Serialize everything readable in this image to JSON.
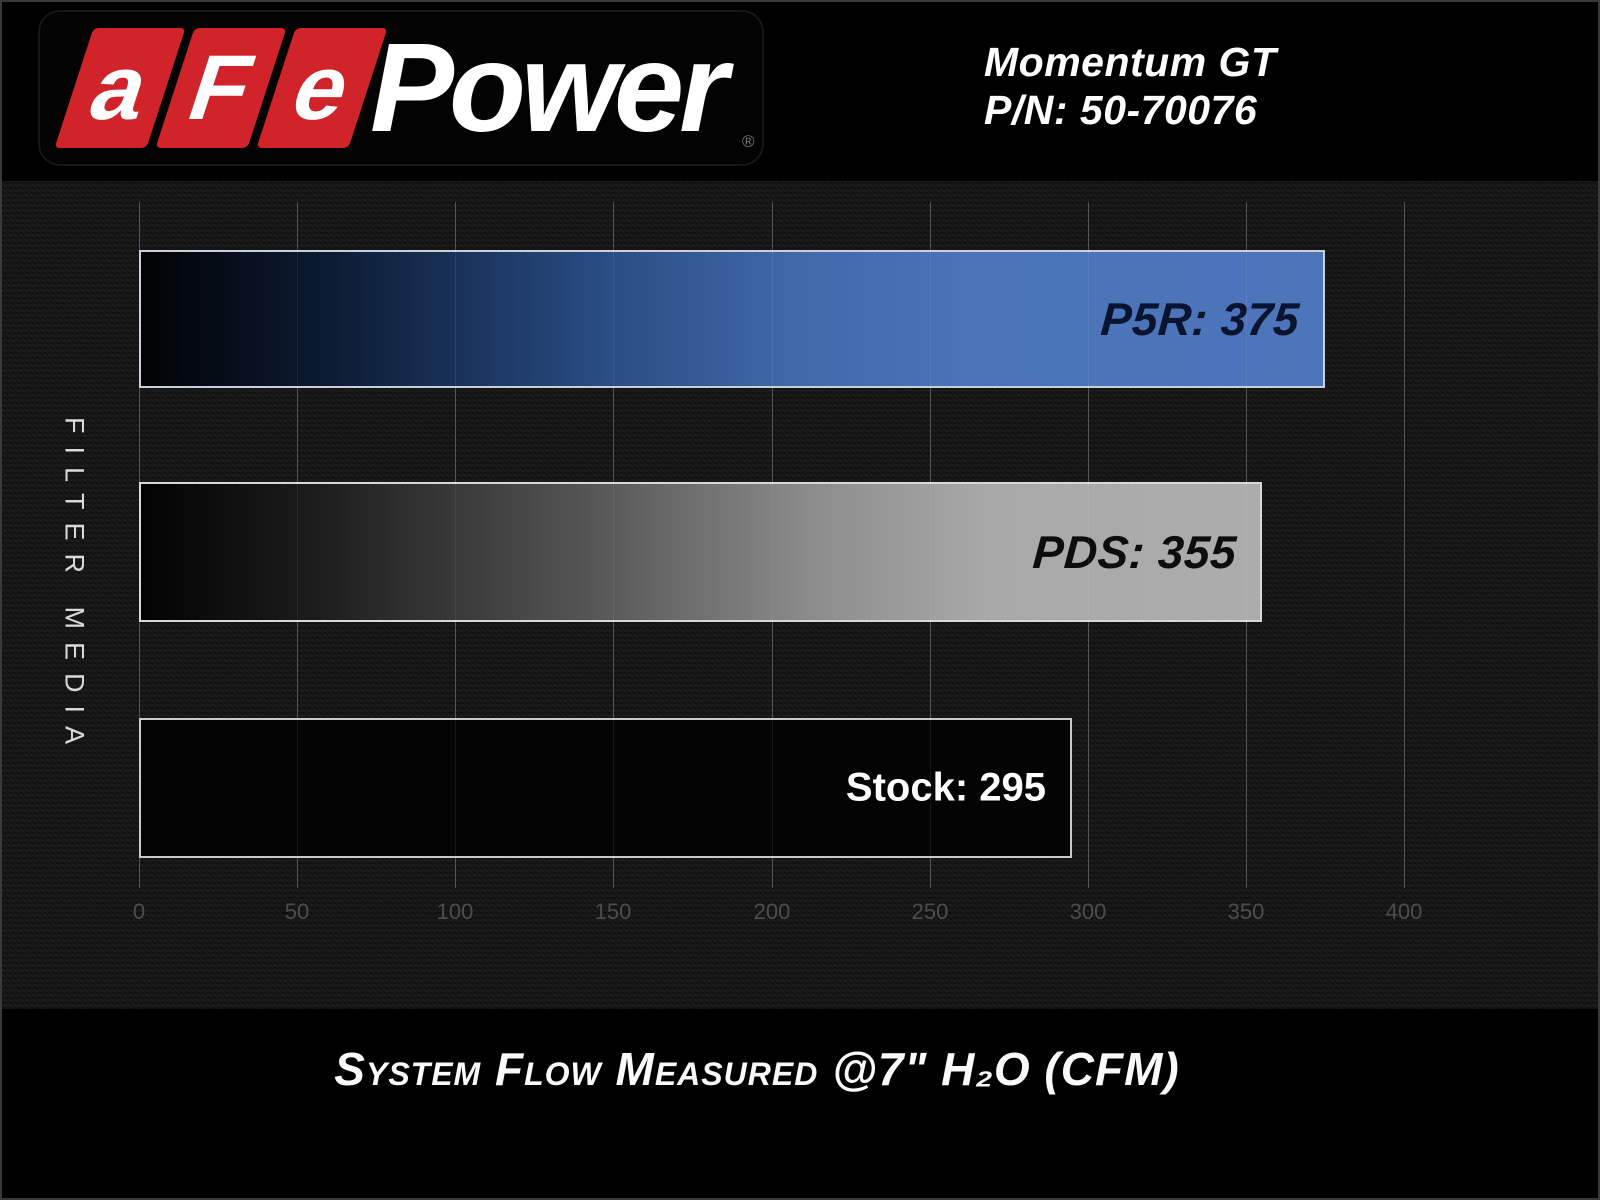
{
  "header": {
    "logo": {
      "letters": [
        "a",
        "F",
        "e"
      ],
      "wordmark": "Power",
      "registered_mark": "®"
    },
    "product_name": "Momentum GT",
    "part_number": "P/N: 50-70076"
  },
  "chart_data": {
    "type": "bar",
    "orientation": "horizontal",
    "title": "",
    "ylabel": "FILTER MEDIA",
    "xlabel": "System Flow Measured @7\" H₂O (CFM)",
    "xticks": [
      0,
      50,
      100,
      150,
      200,
      250,
      300,
      350,
      400
    ],
    "xlim": [
      0,
      450
    ],
    "grid": true,
    "legend": false,
    "categories": [
      "P5R",
      "PDS",
      "Stock"
    ],
    "series": [
      {
        "name": "P5R",
        "value": 375,
        "label": "P5R: 375",
        "fill": "gradient-black-to-blue",
        "fill_end_color": "#4a73b8",
        "label_color": "#0a1430",
        "label_style": "techno-italic"
      },
      {
        "name": "PDS",
        "value": 355,
        "label": "PDS: 355",
        "fill": "gradient-black-to-gray",
        "fill_end_color": "#a9a9a9",
        "label_color": "#0d0d0d",
        "label_style": "techno-italic"
      },
      {
        "name": "Stock",
        "value": 295,
        "label": "Stock: 295",
        "fill": "solid-black",
        "fill_end_color": "#040404",
        "label_color": "#ffffff",
        "label_style": "plain-bold"
      }
    ]
  },
  "colors": {
    "logo_red": "#d1232a",
    "banner_black": "#000000",
    "background_texture": "#161616",
    "bar_blue": "#4a73b8",
    "bar_gray": "#a9a9a9",
    "tick_label_gray": "#4d4d4d"
  }
}
